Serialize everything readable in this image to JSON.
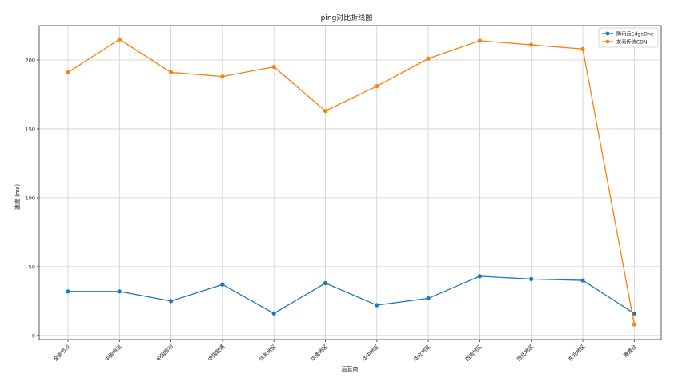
{
  "chart_data": {
    "type": "line",
    "title": "ping对比折线图",
    "xlabel": "运营商",
    "ylabel": "速度 (ms)",
    "categories": [
      "全部节点",
      "中国电信",
      "中国移动",
      "中国联通",
      "华东地区",
      "华南地区",
      "华中地区",
      "华北地区",
      "西南地区",
      "西北地区",
      "东北地区",
      "港澳台"
    ],
    "series": [
      {
        "name": "腾讯云EdgeOne",
        "color": "#1f77b4",
        "values": [
          32,
          32,
          25,
          37,
          16,
          38,
          22,
          27,
          43,
          41,
          40,
          16
        ]
      },
      {
        "name": "友商传统CDN",
        "color": "#ff7f0e",
        "values": [
          191,
          215,
          191,
          188,
          195,
          163,
          181,
          201,
          214,
          211,
          208,
          8
        ]
      }
    ],
    "ylim": [
      -3,
      225
    ],
    "yticks": [
      0,
      50,
      100,
      150,
      200
    ],
    "grid": true,
    "legend": "top-right"
  }
}
